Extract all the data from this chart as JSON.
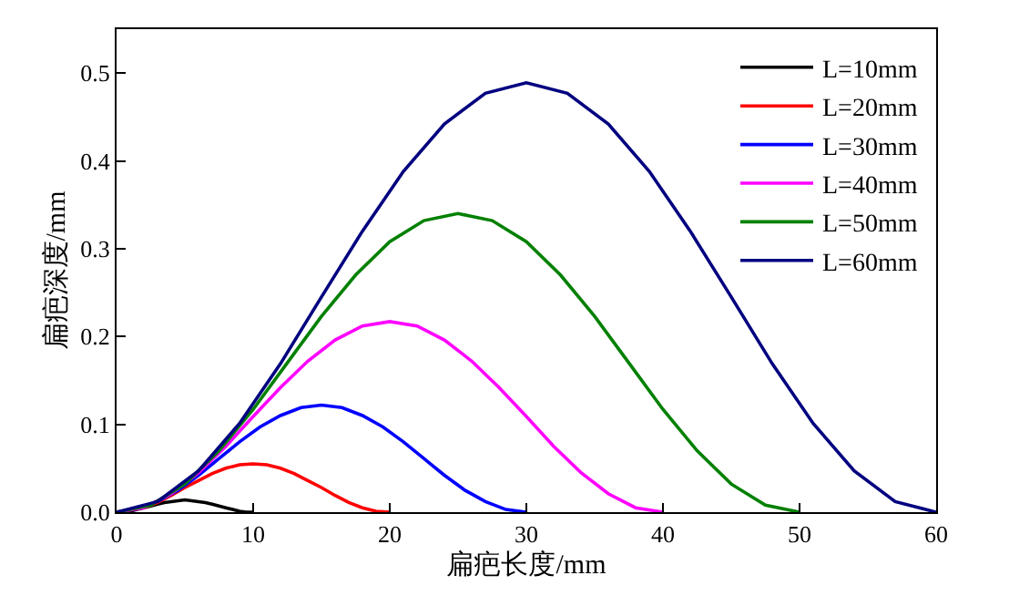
{
  "chart_data": {
    "type": "line",
    "xlabel": "扁疤长度/mm",
    "ylabel": "扁疤深度/mm",
    "xlim": [
      0,
      60
    ],
    "xticks": [
      0,
      10,
      20,
      30,
      40,
      50,
      60
    ],
    "ylim": [
      0,
      0.55
    ],
    "yticks": [
      {
        "value": 0,
        "label": "0.0"
      },
      {
        "value": 0.1,
        "label": "0.1"
      },
      {
        "value": 0.2,
        "label": "0.2"
      },
      {
        "value": 0.3,
        "label": "0.3"
      },
      {
        "value": 0.4,
        "label": "0.4"
      },
      {
        "value": 0.5,
        "label": "0.5"
      }
    ],
    "legend": "top right",
    "marker": "none",
    "line_style": "solid",
    "series": [
      {
        "name": "L=10mm",
        "color": "#000000",
        "x": [
          0,
          0.5,
          1,
          1.5,
          2,
          2.5,
          3,
          3.5,
          4,
          4.5,
          5,
          5.5,
          6,
          6.5,
          7,
          7.5,
          8,
          8.5,
          9,
          9.5,
          10
        ],
        "values": [
          0,
          0,
          0.001,
          0.003,
          0.005,
          0.007,
          0.009,
          0.011,
          0.012,
          0.013,
          0.014,
          0.013,
          0.012,
          0.011,
          0.009,
          0.007,
          0.005,
          0.003,
          0.001,
          0,
          0
        ]
      },
      {
        "name": "L=20mm",
        "color": "#ff0000",
        "x": [
          2,
          3,
          4,
          5,
          6,
          7,
          8,
          9,
          10,
          11,
          12,
          13,
          14,
          15,
          16,
          17,
          18,
          19,
          20
        ],
        "values": [
          0.005,
          0.011,
          0.019,
          0.028,
          0.036,
          0.044,
          0.05,
          0.054,
          0.055,
          0.054,
          0.05,
          0.044,
          0.036,
          0.028,
          0.019,
          0.011,
          0.005,
          0.001,
          0
        ]
      },
      {
        "name": "L=30mm",
        "color": "#0000ff",
        "x": [
          3,
          4.5,
          6,
          7.5,
          9,
          10.5,
          12,
          13.5,
          15,
          16.5,
          18,
          19.5,
          21,
          22.5,
          24,
          25.5,
          27,
          28.5,
          30
        ],
        "values": [
          0.012,
          0.025,
          0.042,
          0.061,
          0.08,
          0.097,
          0.11,
          0.119,
          0.122,
          0.119,
          0.11,
          0.097,
          0.08,
          0.061,
          0.042,
          0.025,
          0.012,
          0.003,
          0
        ]
      },
      {
        "name": "L=40mm",
        "color": "#ff00ff",
        "x": [
          0,
          2,
          4,
          6,
          8,
          10,
          12,
          14,
          16,
          18,
          20,
          22,
          24,
          26,
          28,
          30,
          32,
          34,
          36,
          38,
          40
        ],
        "values": [
          0,
          0.005,
          0.021,
          0.045,
          0.075,
          0.109,
          0.142,
          0.172,
          0.196,
          0.212,
          0.217,
          0.212,
          0.196,
          0.172,
          0.142,
          0.109,
          0.075,
          0.045,
          0.021,
          0.005,
          0
        ]
      },
      {
        "name": "L=50mm",
        "color": "#008000",
        "x": [
          0,
          2.5,
          5,
          7.5,
          10,
          12.5,
          15,
          17.5,
          20,
          22.5,
          25,
          27.5,
          30,
          32.5,
          35,
          37.5,
          40,
          42.5,
          45,
          47.5,
          50
        ],
        "values": [
          0,
          0.008,
          0.032,
          0.07,
          0.117,
          0.17,
          0.223,
          0.27,
          0.308,
          0.332,
          0.34,
          0.332,
          0.308,
          0.27,
          0.223,
          0.17,
          0.117,
          0.07,
          0.032,
          0.008,
          0
        ]
      },
      {
        "name": "L=60mm",
        "color": "#000080",
        "x": [
          0,
          3,
          6,
          9,
          12,
          15,
          18,
          21,
          24,
          27,
          30,
          33,
          36,
          39,
          42,
          45,
          48,
          51,
          54,
          57,
          60
        ],
        "values": [
          0,
          0.012,
          0.047,
          0.101,
          0.169,
          0.245,
          0.32,
          0.388,
          0.442,
          0.477,
          0.489,
          0.477,
          0.442,
          0.388,
          0.32,
          0.245,
          0.169,
          0.101,
          0.047,
          0.012,
          0
        ]
      }
    ]
  }
}
